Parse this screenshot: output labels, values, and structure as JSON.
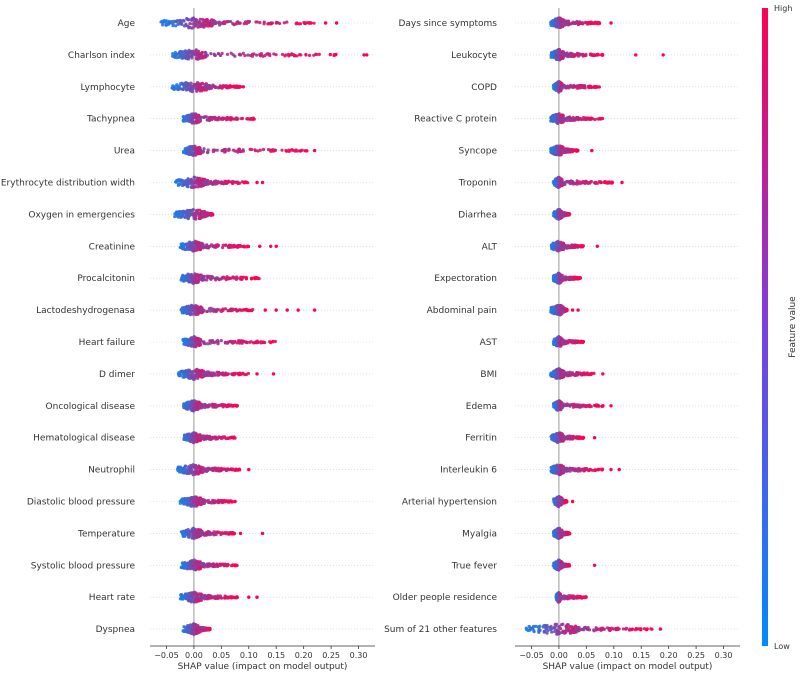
{
  "chart_data": {
    "type": "scatter",
    "subtype": "shap-beeswarm",
    "colors": {
      "low": "#008bfb",
      "high": "#ff0052"
    },
    "colorbar": {
      "label": "Feature value",
      "high_label": "High",
      "low_label": "Low"
    },
    "panels": [
      {
        "xlabel": "SHAP value (impact on model output)",
        "xlim": [
          -0.08,
          0.33
        ],
        "xticks": [
          {
            "v": -0.05,
            "label": "−0.05"
          },
          {
            "v": 0.0,
            "label": "0.00"
          },
          {
            "v": 0.05,
            "label": "0.05"
          },
          {
            "v": 0.1,
            "label": "0.10"
          },
          {
            "v": 0.15,
            "label": "0.15"
          },
          {
            "v": 0.2,
            "label": "0.20"
          },
          {
            "v": 0.25,
            "label": "0.25"
          },
          {
            "v": 0.3,
            "label": "0.30"
          }
        ],
        "features": [
          {
            "name": "Age",
            "neg": -0.06,
            "pos": 0.22,
            "out": [
              0.24,
              0.26
            ]
          },
          {
            "name": "Charlson index",
            "neg": -0.04,
            "pos": 0.26,
            "out": [
              0.31,
              0.315
            ]
          },
          {
            "name": "Lymphocyte",
            "neg": -0.04,
            "pos": 0.085,
            "out": [
              0.09
            ]
          },
          {
            "name": "Tachypnea",
            "neg": -0.02,
            "pos": 0.11,
            "out": []
          },
          {
            "name": "Urea",
            "neg": -0.02,
            "pos": 0.21,
            "out": [
              0.22
            ]
          },
          {
            "name": "Erythrocyte distribution width",
            "neg": -0.035,
            "pos": 0.1,
            "out": [
              0.115,
              0.125
            ]
          },
          {
            "name": "Oxygen in emergencies",
            "neg": -0.035,
            "pos": 0.035,
            "out": []
          },
          {
            "name": "Creatinine",
            "neg": -0.025,
            "pos": 0.1,
            "out": [
              0.12,
              0.14,
              0.15
            ]
          },
          {
            "name": "Procalcitonin",
            "neg": -0.025,
            "pos": 0.12,
            "out": []
          },
          {
            "name": "Lactodeshydrogenasa",
            "neg": -0.025,
            "pos": 0.11,
            "out": [
              0.13,
              0.15,
              0.17,
              0.19,
              0.22
            ]
          },
          {
            "name": "Heart failure",
            "neg": -0.02,
            "pos": 0.15,
            "out": []
          },
          {
            "name": "D dimer",
            "neg": -0.03,
            "pos": 0.1,
            "out": [
              0.115,
              0.145
            ]
          },
          {
            "name": "Oncological disease",
            "neg": -0.02,
            "pos": 0.08,
            "out": []
          },
          {
            "name": "Hematological disease",
            "neg": -0.02,
            "pos": 0.075,
            "out": []
          },
          {
            "name": "Neutrophil",
            "neg": -0.03,
            "pos": 0.085,
            "out": [
              0.1
            ]
          },
          {
            "name": "Diastolic blood pressure",
            "neg": -0.025,
            "pos": 0.07,
            "out": [
              0.075
            ]
          },
          {
            "name": "Temperature",
            "neg": -0.025,
            "pos": 0.075,
            "out": [
              0.085,
              0.125
            ]
          },
          {
            "name": "Systolic blood pressure",
            "neg": -0.025,
            "pos": 0.08,
            "out": []
          },
          {
            "name": "Heart rate",
            "neg": -0.025,
            "pos": 0.08,
            "out": [
              0.1,
              0.115
            ]
          },
          {
            "name": "Dyspnea",
            "neg": -0.02,
            "pos": 0.03,
            "out": []
          }
        ]
      },
      {
        "xlabel": "SHAP value (impact on model output)",
        "xlim": [
          -0.08,
          0.33
        ],
        "xticks": [
          {
            "v": -0.05,
            "label": "−0.05"
          },
          {
            "v": 0.0,
            "label": "0.00"
          },
          {
            "v": 0.05,
            "label": "0.05"
          },
          {
            "v": 0.1,
            "label": "0.10"
          },
          {
            "v": 0.15,
            "label": "0.15"
          },
          {
            "v": 0.2,
            "label": "0.20"
          },
          {
            "v": 0.25,
            "label": "0.25"
          },
          {
            "v": 0.3,
            "label": "0.30"
          }
        ],
        "features": [
          {
            "name": "Days since symptoms",
            "neg": -0.015,
            "pos": 0.075,
            "out": [
              0.095
            ]
          },
          {
            "name": "Leukocyte",
            "neg": -0.015,
            "pos": 0.08,
            "out": [
              0.14,
              0.19
            ]
          },
          {
            "name": "COPD",
            "neg": -0.01,
            "pos": 0.075,
            "out": []
          },
          {
            "name": "Reactive C protein",
            "neg": -0.015,
            "pos": 0.08,
            "out": []
          },
          {
            "name": "Syncope",
            "neg": -0.015,
            "pos": 0.035,
            "out": [
              0.06
            ]
          },
          {
            "name": "Troponin",
            "neg": -0.01,
            "pos": 0.1,
            "out": [
              0.115
            ]
          },
          {
            "name": "Diarrhea",
            "neg": -0.01,
            "pos": 0.02,
            "out": []
          },
          {
            "name": "ALT",
            "neg": -0.015,
            "pos": 0.045,
            "out": [
              0.07
            ]
          },
          {
            "name": "Expectoration",
            "neg": -0.01,
            "pos": 0.04,
            "out": []
          },
          {
            "name": "Abdominal pain",
            "neg": -0.015,
            "pos": 0.015,
            "out": [
              0.025,
              0.035
            ]
          },
          {
            "name": "AST",
            "neg": -0.01,
            "pos": 0.045,
            "out": []
          },
          {
            "name": "BMI",
            "neg": -0.015,
            "pos": 0.065,
            "out": [
              0.08
            ]
          },
          {
            "name": "Edema",
            "neg": -0.01,
            "pos": 0.085,
            "out": [
              0.095
            ]
          },
          {
            "name": "Ferritin",
            "neg": -0.015,
            "pos": 0.045,
            "out": [
              0.065
            ]
          },
          {
            "name": "Interleukin 6",
            "neg": -0.015,
            "pos": 0.08,
            "out": [
              0.095,
              0.11
            ]
          },
          {
            "name": "Arterial hypertension",
            "neg": -0.01,
            "pos": 0.015,
            "out": [
              0.025
            ]
          },
          {
            "name": "Myalgia",
            "neg": -0.01,
            "pos": 0.02,
            "out": []
          },
          {
            "name": "True fever",
            "neg": -0.01,
            "pos": 0.02,
            "out": [
              0.065
            ]
          },
          {
            "name": "Older people residence",
            "neg": -0.005,
            "pos": 0.05,
            "out": []
          },
          {
            "name": "Sum of 21 other features",
            "neg": -0.06,
            "pos": 0.17,
            "out": [
              0.185
            ]
          }
        ]
      }
    ]
  }
}
